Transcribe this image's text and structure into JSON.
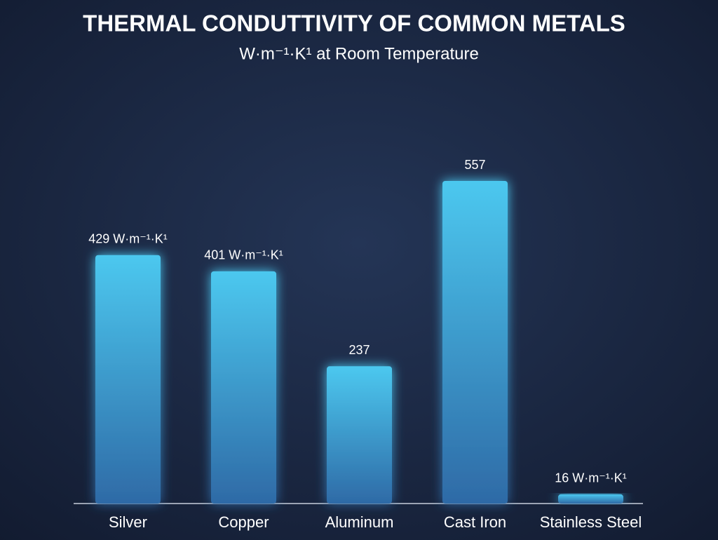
{
  "chart_data": {
    "type": "bar",
    "title": "THERMAL CONDUTTIVITY OF COMMON METALS",
    "subtitle": "W·m⁻¹·K¹ at Room Temperature",
    "categories": [
      "Silver",
      "Copper",
      "Aluminum",
      "Cast Iron",
      "Stainless Steel"
    ],
    "values": [
      429,
      401,
      237,
      557,
      16
    ],
    "value_labels": [
      "429 W·m⁻¹·K¹",
      "401 W·m⁻¹·K¹",
      "237",
      "557",
      "16 W·m⁻¹·K¹"
    ],
    "color": "#4cc8ef"
  }
}
